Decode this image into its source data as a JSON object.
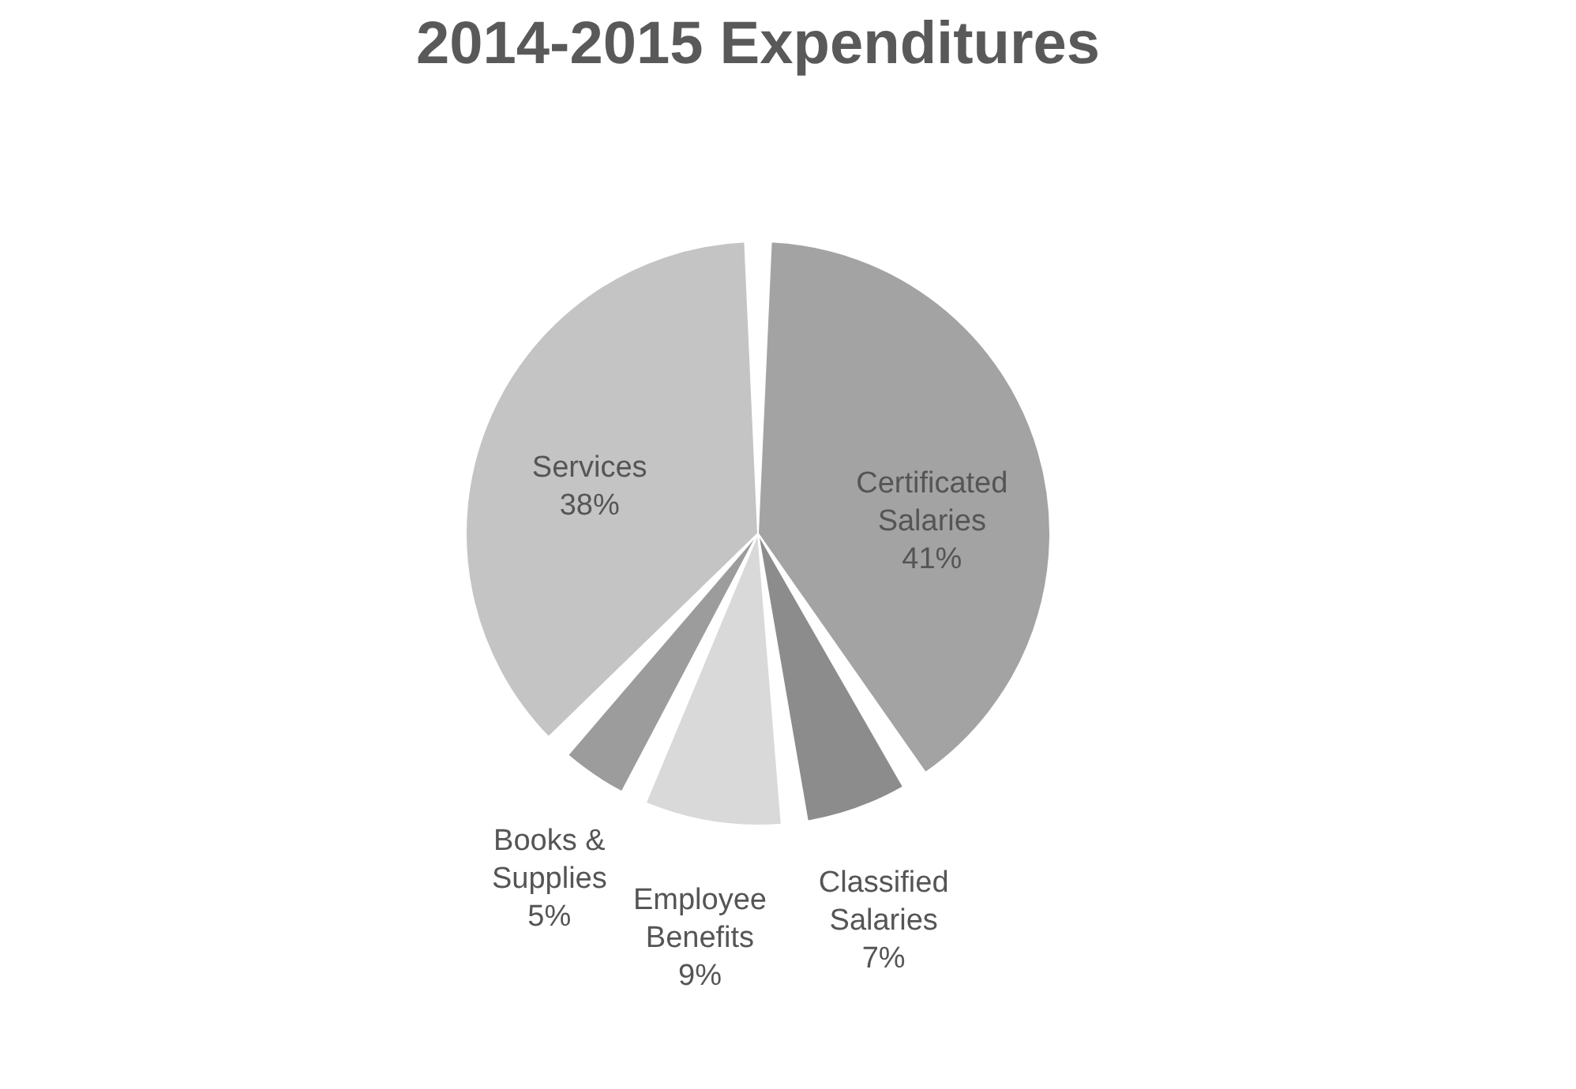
{
  "chart_data": {
    "type": "pie",
    "title": "2014-2015 Expenditures",
    "categories": [
      "Certificated Salaries",
      "Classified Salaries",
      "Employee Benefits",
      "Books & Supplies",
      "Services"
    ],
    "values": [
      41,
      7,
      9,
      5,
      38
    ],
    "colors": [
      "#a3a3a3",
      "#8c8c8c",
      "#d9d9d9",
      "#9c9c9c",
      "#c4c4c4"
    ],
    "value_labels": [
      "41%",
      "7%",
      "9%",
      "5%",
      "38%"
    ],
    "legend": false
  }
}
